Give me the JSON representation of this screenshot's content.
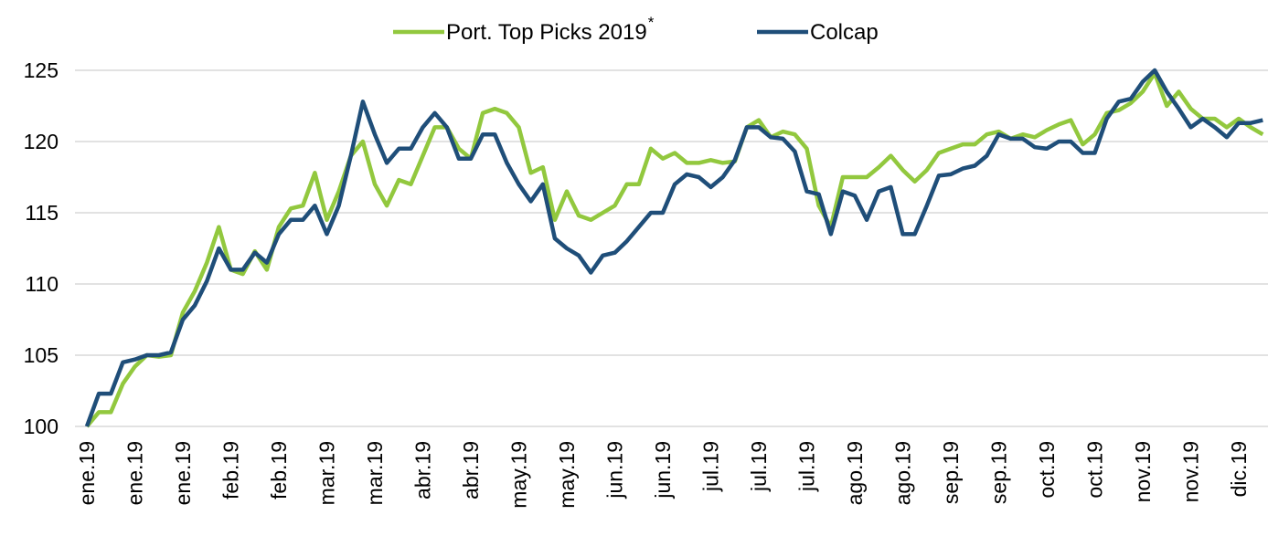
{
  "chart_data": {
    "type": "line",
    "categories": [
      "ene.19",
      null,
      null,
      null,
      "ene.19",
      null,
      null,
      null,
      "ene.19",
      null,
      null,
      null,
      "feb.19",
      null,
      null,
      null,
      "feb.19",
      null,
      null,
      null,
      "mar.19",
      null,
      null,
      null,
      "mar.19",
      null,
      null,
      null,
      "abr.19",
      null,
      null,
      null,
      "abr.19",
      null,
      null,
      null,
      "may.19",
      null,
      null,
      null,
      "may.19",
      null,
      null,
      null,
      "jun.19",
      null,
      null,
      null,
      "jun.19",
      null,
      null,
      null,
      "jul.19",
      null,
      null,
      null,
      "jul.19",
      null,
      null,
      null,
      "jul.19",
      null,
      null,
      null,
      "ago.19",
      null,
      null,
      null,
      "ago.19",
      null,
      null,
      null,
      "sep.19",
      null,
      null,
      null,
      "sep.19",
      null,
      null,
      null,
      "oct.19",
      null,
      null,
      null,
      "oct.19",
      null,
      null,
      null,
      "nov.19",
      null,
      null,
      null,
      "nov.19",
      null,
      null,
      null,
      "dic.19",
      null,
      null
    ],
    "series": [
      {
        "name": "Port. Top Picks 2019",
        "footnote_marker": "*",
        "color": "#92c83e",
        "values": [
          100,
          101,
          101,
          103,
          104.2,
          105,
          104.9,
          105,
          108,
          109.5,
          111.5,
          114,
          111,
          110.7,
          112.3,
          111,
          114,
          115.3,
          115.5,
          117.8,
          114.5,
          116.5,
          119,
          120,
          117,
          115.5,
          117.3,
          117,
          119,
          121,
          121,
          119.5,
          118.8,
          122,
          122.3,
          122,
          121,
          117.8,
          118.2,
          114.5,
          116.5,
          114.8,
          114.5,
          115,
          115.5,
          117,
          117,
          119.5,
          118.8,
          119.2,
          118.5,
          118.5,
          118.7,
          118.5,
          118.6,
          121,
          121.5,
          120.3,
          120.7,
          120.5,
          119.5,
          115.5,
          114,
          117.5,
          117.5,
          117.5,
          118.2,
          119,
          118,
          117.2,
          118,
          119.2,
          119.5,
          119.8,
          119.8,
          120.5,
          120.7,
          120.2,
          120.5,
          120.3,
          120.8,
          121.2,
          121.5,
          119.8,
          120.5,
          122,
          122.2,
          122.7,
          123.5,
          124.8,
          122.5,
          123.5,
          122.3,
          121.6,
          121.6,
          121,
          121.6,
          121,
          120.5
        ]
      },
      {
        "name": "Colcap",
        "color": "#1f4e79",
        "values": [
          100,
          102.3,
          102.3,
          104.5,
          104.7,
          105,
          105,
          105.2,
          107.5,
          108.5,
          110.2,
          112.5,
          111,
          111,
          112.2,
          111.5,
          113.5,
          114.5,
          114.5,
          115.5,
          113.5,
          115.5,
          119,
          122.8,
          120.5,
          118.5,
          119.5,
          119.5,
          121,
          122,
          121,
          118.8,
          118.8,
          120.5,
          120.5,
          118.5,
          117,
          115.8,
          117,
          113.2,
          112.5,
          112,
          110.8,
          112,
          112.2,
          113,
          114,
          115,
          115,
          117,
          117.7,
          117.5,
          116.8,
          117.5,
          118.7,
          121,
          121,
          120.3,
          120.2,
          119.3,
          116.5,
          116.3,
          113.5,
          116.5,
          116.2,
          114.5,
          116.5,
          116.8,
          113.5,
          113.5,
          115.5,
          117.6,
          117.7,
          118.1,
          118.3,
          119,
          120.5,
          120.2,
          120.2,
          119.6,
          119.5,
          120,
          120,
          119.2,
          119.2,
          121.6,
          122.8,
          123,
          124.2,
          125,
          123.5,
          122.3,
          121,
          121.6,
          121,
          120.3,
          121.3,
          121.3,
          121.5
        ]
      }
    ],
    "ylim": [
      100,
      125
    ],
    "yticks": [
      100,
      105,
      110,
      115,
      120,
      125
    ],
    "grid": true,
    "legend": "top"
  }
}
